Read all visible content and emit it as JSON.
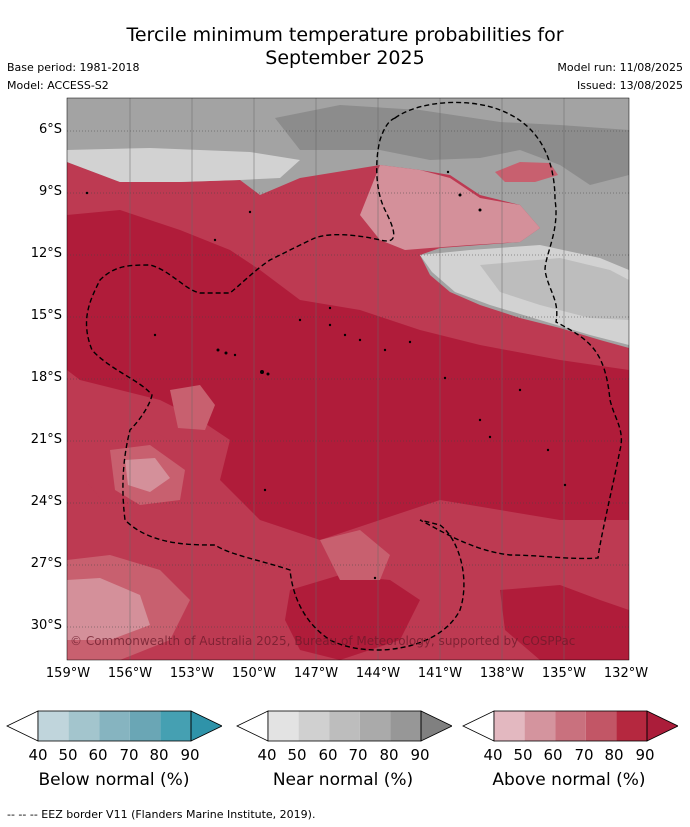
{
  "title_line1": "Tercile minimum temperature probabilities for",
  "title_line2": "September 2025",
  "meta": {
    "base_period": "Base period: 1981-2018",
    "model": "Model: ACCESS-S2",
    "model_run": "Model run: 11/08/2025",
    "issued": "Issued: 13/08/2025"
  },
  "lat_labels": [
    "6°S",
    "9°S",
    "12°S",
    "15°S",
    "18°S",
    "21°S",
    "24°S",
    "27°S",
    "30°S"
  ],
  "lon_labels": [
    "159°W",
    "156°W",
    "153°W",
    "150°W",
    "147°W",
    "144°W",
    "141°W",
    "138°W",
    "135°W",
    "132°W"
  ],
  "copyright": "© Commonwealth of Australia 2025, Bureau of Meteorology, supported by COSPPac",
  "colorbars": [
    {
      "label": "Below normal (%)",
      "ticks": [
        "40",
        "50",
        "60",
        "70",
        "80",
        "90"
      ],
      "colors": [
        "#ffffff",
        "#c0d5dc",
        "#a3c5cd",
        "#86b4c0",
        "#6aa6b5",
        "#45a0b2",
        "#2f93a9"
      ]
    },
    {
      "label": "Near normal (%)",
      "ticks": [
        "40",
        "50",
        "60",
        "70",
        "80",
        "90"
      ],
      "colors": [
        "#ffffff",
        "#e3e3e3",
        "#d0d0d0",
        "#bdbdbd",
        "#aaaaaa",
        "#979797",
        "#808080"
      ]
    },
    {
      "label": "Above normal (%)",
      "ticks": [
        "40",
        "50",
        "60",
        "70",
        "80",
        "90"
      ],
      "colors": [
        "#ffffff",
        "#e3b8c0",
        "#d4949e",
        "#c9717e",
        "#c25666",
        "#b5283f",
        "#ab1d3a"
      ]
    }
  ],
  "footnote": "--  --  -- EEZ border V11 (Flanders Marine Institute, 2019).",
  "map_colors": {
    "above_90": "#b01c3a",
    "above_80": "#bd3a52",
    "above_70": "#c8606f",
    "above_60": "#d4909a",
    "above_50": "#e3b8c0",
    "near_90": "#8c8c8c",
    "near_80": "#a3a3a3",
    "near_70": "#bdbdbd",
    "near_60": "#d2d2d2",
    "near_50": "#e3e3e3"
  }
}
